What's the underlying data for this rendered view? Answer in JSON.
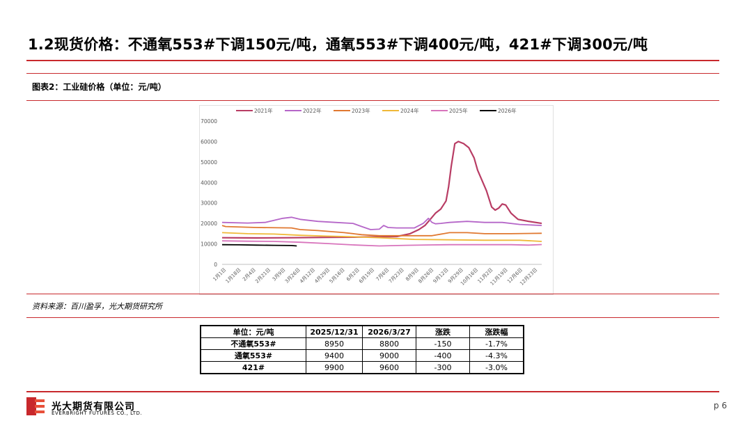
{
  "title": "1.2现货价格：不通氧553#下调150元/吨，通氧553#下调400元/吨，421#下调300元/吨",
  "figure_label": "图表2：工业硅价格（单位：元/吨）",
  "source": "资料来源：百川盈孚，光大期货研究所",
  "brand": {
    "cn": "光大期货有限公司",
    "en": "EVERBRIGHT FUTURES CO., LTD."
  },
  "page": "p 6",
  "colors": {
    "accent": "#c8282c"
  },
  "chart_data": {
    "type": "line",
    "title": "",
    "xlabel": "",
    "ylabel": "",
    "ylim": [
      0,
      70000
    ],
    "yticks": [
      "0",
      "10000",
      "20000",
      "30000",
      "40000",
      "50000",
      "60000",
      "70000"
    ],
    "x_ticks": [
      "1月1日",
      "1月18日",
      "2月4日",
      "2月21日",
      "3月9日",
      "3月26日",
      "4月12日",
      "4月29日",
      "5月16日",
      "6月2日",
      "6月19日",
      "7月6日",
      "7月23日",
      "8月9日",
      "8月26日",
      "9月12日",
      "9月29日",
      "10月16日",
      "11月2日",
      "11月19日",
      "12月6日",
      "12月23日"
    ],
    "x_domain": [
      1,
      365
    ],
    "legend_position": "top",
    "series": [
      {
        "name": "2021年",
        "color": "#b83c64",
        "x": [
          1,
          40,
          80,
          120,
          150,
          180,
          200,
          215,
          225,
          232,
          238,
          244,
          250,
          253,
          256,
          259,
          262,
          266,
          270,
          276,
          282,
          288,
          292,
          296,
          302,
          308,
          312,
          316,
          320,
          324,
          330,
          338,
          350,
          365
        ],
        "y": [
          13000,
          12900,
          13000,
          13200,
          13300,
          13500,
          13600,
          15000,
          17000,
          19000,
          22000,
          25000,
          27000,
          29000,
          31000,
          38000,
          48000,
          59000,
          60000,
          59000,
          57000,
          52000,
          46000,
          42000,
          36000,
          28000,
          26500,
          27500,
          29500,
          29000,
          25000,
          22000,
          21000,
          20000
        ]
      },
      {
        "name": "2022年",
        "color": "#b566c8",
        "x": [
          1,
          30,
          50,
          60,
          70,
          80,
          90,
          110,
          130,
          150,
          160,
          170,
          180,
          185,
          190,
          200,
          220,
          230,
          236,
          240,
          244,
          250,
          260,
          280,
          300,
          320,
          340,
          365
        ],
        "y": [
          20500,
          20200,
          20500,
          21500,
          22500,
          23000,
          22000,
          21000,
          20500,
          20000,
          18500,
          17000,
          17200,
          19000,
          18000,
          17800,
          17800,
          20000,
          22500,
          20500,
          19800,
          20000,
          20500,
          21000,
          20500,
          20500,
          19500,
          19000
        ]
      },
      {
        "name": "2023年",
        "color": "#e07830",
        "x": [
          1,
          5,
          40,
          80,
          90,
          110,
          140,
          160,
          180,
          200,
          220,
          240,
          260,
          280,
          300,
          330,
          365
        ],
        "y": [
          19000,
          18500,
          18000,
          17800,
          17000,
          16500,
          15500,
          14500,
          14000,
          14000,
          14000,
          14000,
          15500,
          15500,
          15000,
          15000,
          15200
        ]
      },
      {
        "name": "2024年",
        "color": "#f0b838",
        "x": [
          1,
          30,
          60,
          90,
          120,
          150,
          180,
          220,
          260,
          300,
          340,
          365
        ],
        "y": [
          15500,
          15000,
          14800,
          14200,
          13800,
          13500,
          13000,
          12200,
          12000,
          11800,
          11800,
          11200
        ]
      },
      {
        "name": "2025年",
        "color": "#d874bc",
        "x": [
          1,
          30,
          60,
          90,
          120,
          150,
          180,
          210,
          240,
          260,
          300,
          330,
          350,
          365
        ],
        "y": [
          11500,
          11300,
          11200,
          10800,
          10200,
          9500,
          9000,
          9300,
          9500,
          9600,
          9600,
          9600,
          9400,
          9700
        ]
      },
      {
        "name": "2026年",
        "color": "#000000",
        "x": [
          1,
          20,
          40,
          60,
          80,
          86
        ],
        "y": [
          9600,
          9550,
          9400,
          9300,
          9200,
          9000
        ]
      }
    ]
  },
  "table": {
    "headers": [
      "单位：元/吨",
      "2025/12/31",
      "2026/3/27",
      "涨跌",
      "涨跌幅"
    ],
    "rows": [
      [
        "不通氧553#",
        "8950",
        "8800",
        "-150",
        "-1.7%"
      ],
      [
        "通氧553#",
        "9400",
        "9000",
        "-400",
        "-4.3%"
      ],
      [
        "421#",
        "9900",
        "9600",
        "-300",
        "-3.0%"
      ]
    ]
  }
}
